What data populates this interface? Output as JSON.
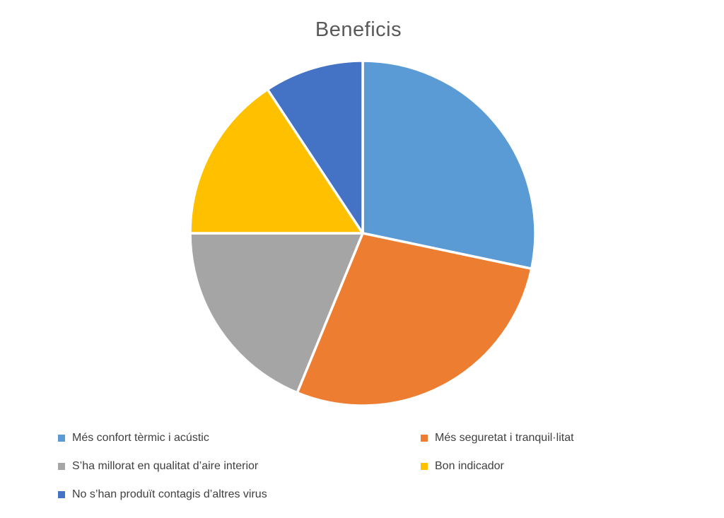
{
  "chart_data": {
    "type": "pie",
    "title": "Beneficis",
    "labels": [
      "Més confort tèrmic i acústic",
      "Més seguretat i tranquil·litat",
      "S’ha millorat en qualitat d’aire interior",
      "Bon indicador",
      "No s’han produït contagis d’altres virus"
    ],
    "values": [
      28.3,
      27.9,
      18.8,
      15.7,
      9.3
    ],
    "values_note": "percent of circle, estimated from slice angles (102, 100.5, 67.5, 56.6, 33.4 degrees)",
    "colors": [
      "#5B9BD5",
      "#ED7D31",
      "#A5A5A5",
      "#FFC000",
      "#4472C4"
    ],
    "start_angle_deg": 0,
    "direction": "clockwise",
    "slice_border_color": "#FFFFFF",
    "legend_position": "bottom",
    "legend_columns": 2,
    "title_color": "#595959",
    "legend_text_color": "#404040",
    "background_color": "#FFFFFF"
  }
}
